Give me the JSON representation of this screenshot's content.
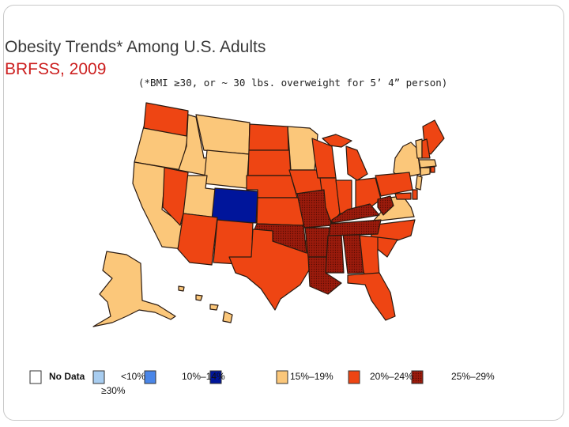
{
  "slide": {
    "title": "Obesity Trends* Among U.S. Adults",
    "subtitle": "BRFSS, 2009",
    "note": "(*BMI ≥30, or ~ 30 lbs. overweight for 5’ 4” person)"
  },
  "colors": {
    "no_data": "#ffffff",
    "lt10": "#a8cdf0",
    "r10_14": "#4a86e8",
    "r15_19": "#00159b",
    "r20_24": "#fbc77a",
    "r25_29": "#ee4513",
    "ge30": "#9b1b0c"
  },
  "legend": {
    "no_data": "No Data",
    "lt10": "<10%",
    "r10_14": "10%–14%",
    "r15_19": "15%–19%",
    "r20_24": "20%–24%",
    "r25_29": "25%–29%",
    "ge30": "≥30%"
  }
}
